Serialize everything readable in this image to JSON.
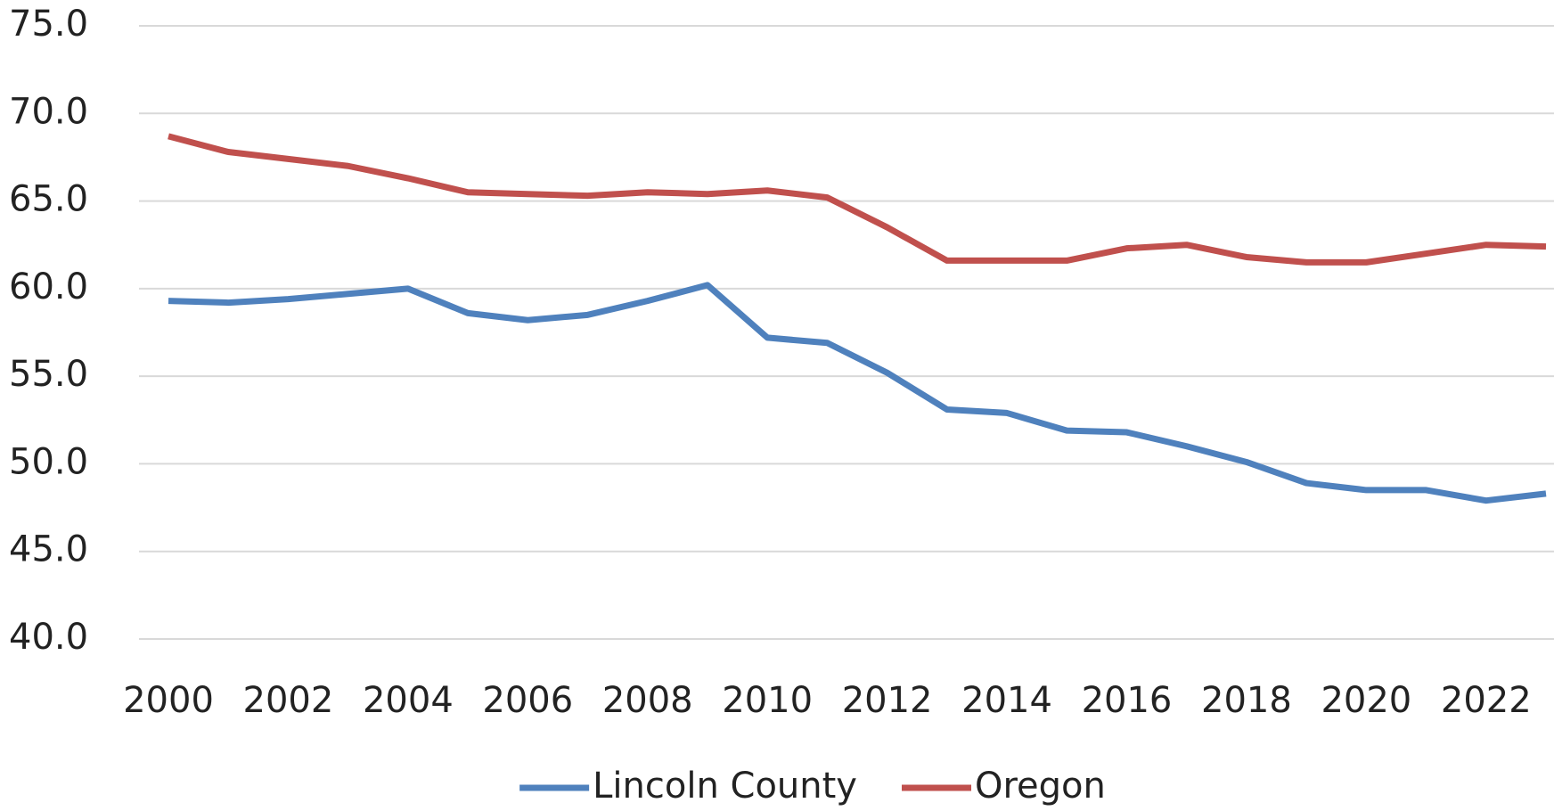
{
  "chart_data": {
    "type": "line",
    "x": [
      2000,
      2001,
      2002,
      2003,
      2004,
      2005,
      2006,
      2007,
      2008,
      2009,
      2010,
      2011,
      2012,
      2013,
      2014,
      2015,
      2016,
      2017,
      2018,
      2019,
      2020,
      2021,
      2022,
      2023
    ],
    "xlim": [
      2000,
      2023
    ],
    "xticks": [
      2000,
      2002,
      2004,
      2006,
      2008,
      2010,
      2012,
      2014,
      2016,
      2018,
      2020,
      2022
    ],
    "ylim": [
      40,
      75
    ],
    "yticks": [
      {
        "value": 40,
        "label": "40.0"
      },
      {
        "value": 45,
        "label": "45.0"
      },
      {
        "value": 50,
        "label": "50.0"
      },
      {
        "value": 55,
        "label": "55.0"
      },
      {
        "value": 60,
        "label": "60.0"
      },
      {
        "value": 65,
        "label": "65.0"
      },
      {
        "value": 70,
        "label": "70.0"
      },
      {
        "value": 75,
        "label": "75.0"
      }
    ],
    "grid": true,
    "legend": "bottom",
    "series": [
      {
        "name": "Lincoln County",
        "color": "#4f81bd",
        "values": [
          59.3,
          59.2,
          59.4,
          59.7,
          60.0,
          58.6,
          58.2,
          58.5,
          59.3,
          60.2,
          57.2,
          56.9,
          55.2,
          53.1,
          52.9,
          51.9,
          51.8,
          51.0,
          50.1,
          48.9,
          48.5,
          48.5,
          47.9,
          48.3
        ]
      },
      {
        "name": "Oregon",
        "color": "#c0504d",
        "values": [
          68.7,
          67.8,
          67.4,
          67.0,
          66.3,
          65.5,
          65.4,
          65.3,
          65.5,
          65.4,
          65.6,
          65.2,
          63.5,
          61.6,
          61.6,
          61.6,
          62.3,
          62.5,
          61.8,
          61.5,
          61.5,
          62.0,
          62.5,
          62.4
        ]
      }
    ]
  }
}
